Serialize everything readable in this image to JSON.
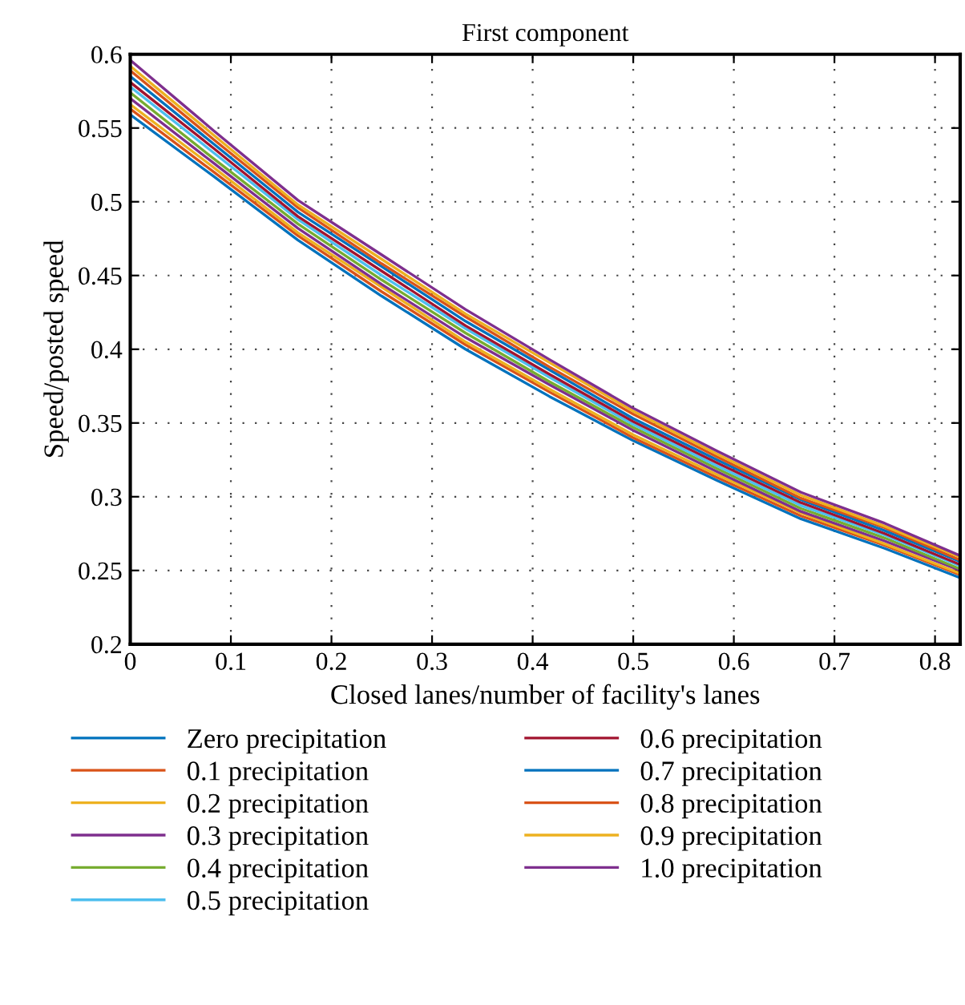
{
  "chart_data": {
    "type": "line",
    "title": "First component",
    "xlabel": "Closed lanes/number of facility's lanes",
    "ylabel": "Speed/posted speed",
    "x": [
      0,
      0.0833,
      0.1667,
      0.25,
      0.3333,
      0.4167,
      0.5,
      0.5833,
      0.6667,
      0.75,
      0.825
    ],
    "series": [
      {
        "name": "Zero precipitation",
        "color": "#0072bd",
        "values": [
          0.559,
          0.517,
          0.474,
          0.436,
          0.4,
          0.368,
          0.338,
          0.311,
          0.285,
          0.265,
          0.245
        ]
      },
      {
        "name": "0.1 precipitation",
        "color": "#d95319",
        "values": [
          0.563,
          0.52,
          0.477,
          0.439,
          0.403,
          0.371,
          0.34,
          0.313,
          0.287,
          0.267,
          0.247
        ]
      },
      {
        "name": "0.2 precipitation",
        "color": "#edb120",
        "values": [
          0.566,
          0.523,
          0.479,
          0.442,
          0.405,
          0.373,
          0.342,
          0.315,
          0.289,
          0.268,
          0.248
        ]
      },
      {
        "name": "0.3 precipitation",
        "color": "#7e2f8e",
        "values": [
          0.57,
          0.526,
          0.482,
          0.444,
          0.408,
          0.376,
          0.345,
          0.317,
          0.29,
          0.27,
          0.25
        ]
      },
      {
        "name": "0.4 precipitation",
        "color": "#77ac30",
        "values": [
          0.574,
          0.529,
          0.485,
          0.447,
          0.411,
          0.378,
          0.347,
          0.319,
          0.292,
          0.272,
          0.251
        ]
      },
      {
        "name": "0.5 precipitation",
        "color": "#4dbeee",
        "values": [
          0.578,
          0.533,
          0.488,
          0.45,
          0.414,
          0.381,
          0.349,
          0.321,
          0.294,
          0.274,
          0.253
        ]
      },
      {
        "name": "0.6 precipitation",
        "color": "#a2142f",
        "values": [
          0.581,
          0.536,
          0.49,
          0.453,
          0.416,
          0.383,
          0.351,
          0.323,
          0.296,
          0.275,
          0.254
        ]
      },
      {
        "name": "0.7 precipitation",
        "color": "#0072bd",
        "values": [
          0.585,
          0.539,
          0.493,
          0.456,
          0.419,
          0.386,
          0.353,
          0.325,
          0.298,
          0.277,
          0.256
        ]
      },
      {
        "name": "0.8 precipitation",
        "color": "#d95319",
        "values": [
          0.589,
          0.542,
          0.496,
          0.458,
          0.422,
          0.388,
          0.356,
          0.327,
          0.299,
          0.279,
          0.257
        ]
      },
      {
        "name": "0.9 precipitation",
        "color": "#edb120",
        "values": [
          0.592,
          0.545,
          0.498,
          0.461,
          0.424,
          0.391,
          0.358,
          0.329,
          0.301,
          0.28,
          0.259
        ]
      },
      {
        "name": "1.0 precipitation",
        "color": "#7e2f8e",
        "values": [
          0.596,
          0.548,
          0.501,
          0.464,
          0.427,
          0.393,
          0.36,
          0.331,
          0.303,
          0.282,
          0.26
        ]
      }
    ],
    "xlim": [
      0,
      0.825
    ],
    "ylim": [
      0.2,
      0.6
    ],
    "xticks": [
      0,
      0.1,
      0.2,
      0.3,
      0.4,
      0.5,
      0.6,
      0.7,
      0.8
    ],
    "yticks": [
      0.2,
      0.25,
      0.3,
      0.35,
      0.4,
      0.45,
      0.5,
      0.55,
      0.6
    ],
    "grid": true,
    "legend": "bottom",
    "line_style": "solid"
  }
}
